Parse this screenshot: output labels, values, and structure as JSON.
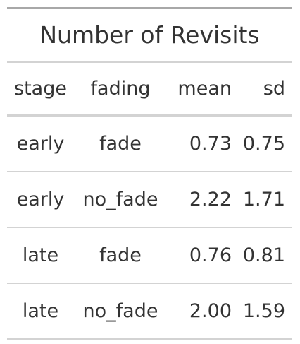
{
  "table": {
    "title": "Number of Revisits",
    "columns": [
      "stage",
      "fading",
      "mean",
      "sd"
    ],
    "rows": [
      {
        "stage": "early",
        "fading": "fade",
        "mean": "0.73",
        "sd": "0.75"
      },
      {
        "stage": "early",
        "fading": "no_fade",
        "mean": "2.22",
        "sd": "1.71"
      },
      {
        "stage": "late",
        "fading": "fade",
        "mean": "0.76",
        "sd": "0.81"
      },
      {
        "stage": "late",
        "fading": "no_fade",
        "mean": "2.00",
        "sd": "1.59"
      }
    ]
  },
  "chart_data": {
    "type": "table",
    "title": "Number of Revisits",
    "columns": [
      "stage",
      "fading",
      "mean",
      "sd"
    ],
    "rows": [
      [
        "early",
        "fade",
        0.73,
        0.75
      ],
      [
        "early",
        "no_fade",
        2.22,
        1.71
      ],
      [
        "late",
        "fade",
        0.76,
        0.81
      ],
      [
        "late",
        "no_fade",
        2.0,
        1.59
      ]
    ]
  }
}
